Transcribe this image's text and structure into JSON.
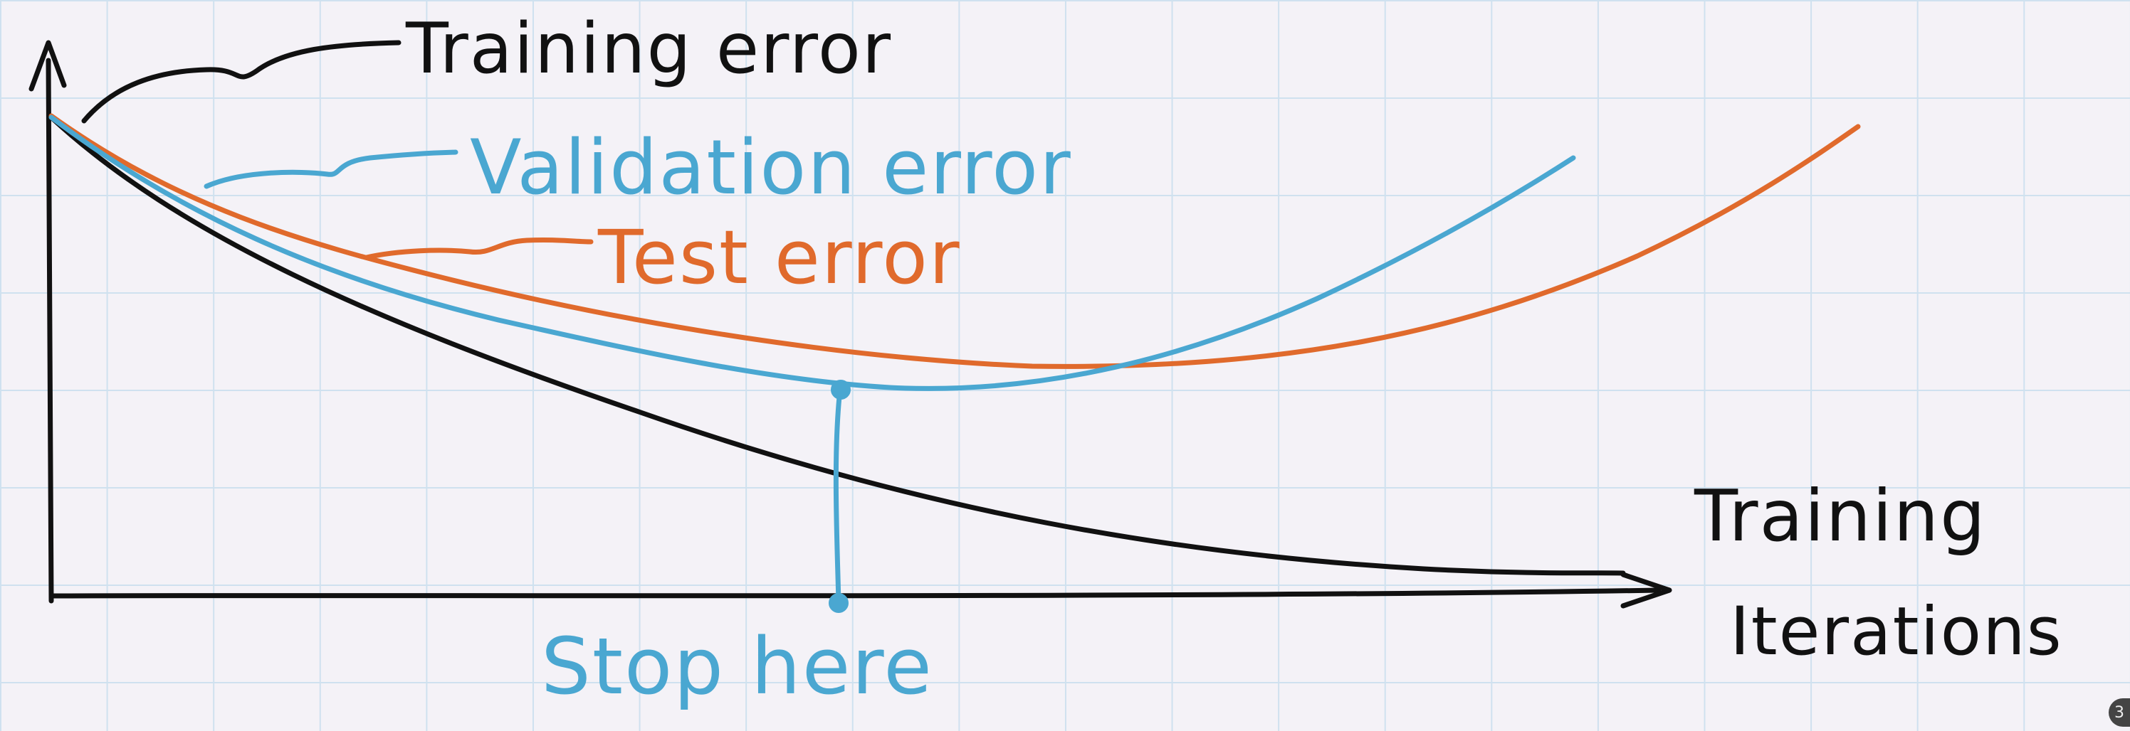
{
  "labels": {
    "training_error": "Training error",
    "validation_error": "Validation error",
    "test_error": "Test error",
    "stop_here": "Stop here",
    "x_axis_line1": "Training",
    "x_axis_line2": "Iterations"
  },
  "colors": {
    "training": "#111111",
    "validation": "#4aa7d1",
    "test": "#e06a2c",
    "axis": "#111111",
    "grid": "#cfe1ef",
    "background": "#f4f2f7"
  },
  "diagram": {
    "description_type": "hand-drawn early-stopping sketch",
    "curves": [
      {
        "name": "training",
        "shape": "monotonically decreasing"
      },
      {
        "name": "validation",
        "shape": "U-shaped, minimum then rising"
      },
      {
        "name": "test",
        "shape": "U-shaped, shallower, rising later"
      }
    ],
    "stop_marker": "vertical line from validation minimum to x-axis"
  },
  "badge": "3"
}
